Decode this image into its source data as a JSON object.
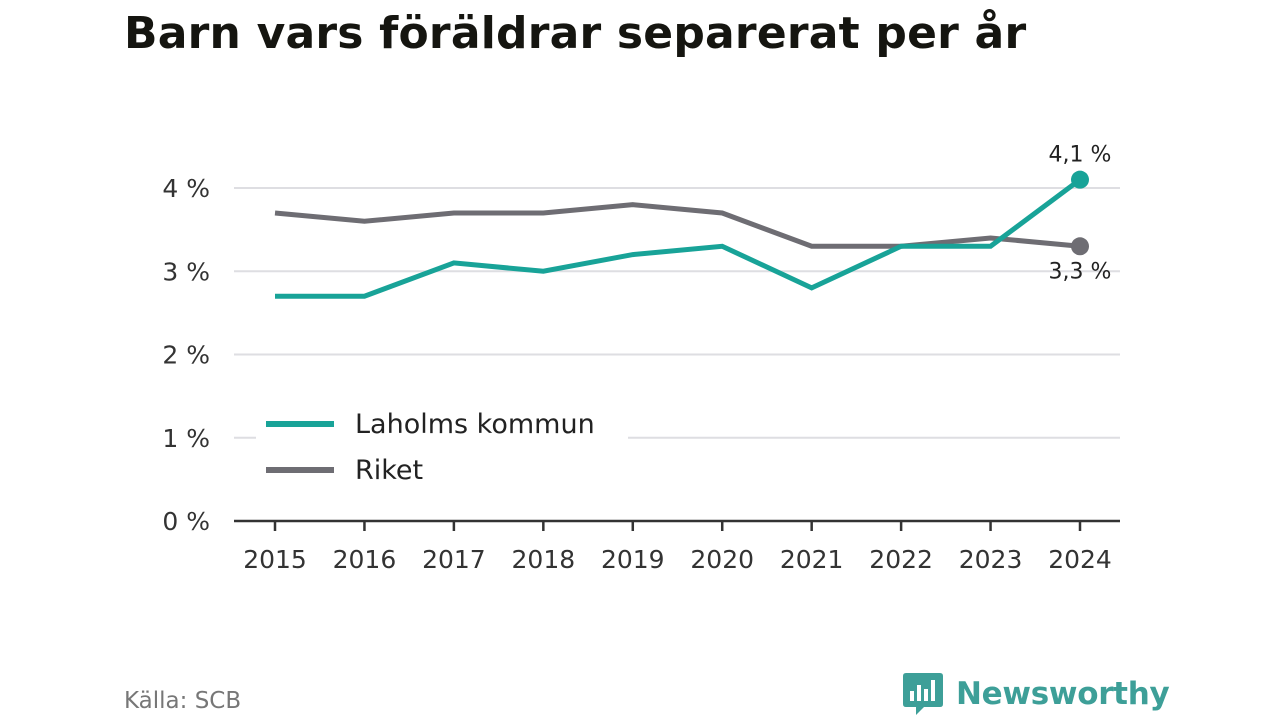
{
  "title": "Barn vars föräldrar separerat per år",
  "source": "Källa: SCB",
  "brand": {
    "name": "Newsworthy",
    "icon": "bar-chart-speech-bubble-icon",
    "color": "#3d9f98"
  },
  "chart_data": {
    "type": "line",
    "title": "Barn vars föräldrar separerat per år",
    "xlabel": "",
    "ylabel": "",
    "x": [
      "2015",
      "2016",
      "2017",
      "2018",
      "2019",
      "2020",
      "2021",
      "2022",
      "2023",
      "2024"
    ],
    "ylim": [
      0,
      4
    ],
    "y_ticks": [
      {
        "value": 0,
        "label": "0 %"
      },
      {
        "value": 1,
        "label": "1 %"
      },
      {
        "value": 2,
        "label": "2 %"
      },
      {
        "value": 3,
        "label": "3 %"
      },
      {
        "value": 4,
        "label": "4 %"
      }
    ],
    "grid": true,
    "legend_position": "bottom-left",
    "series": [
      {
        "name": "Laholms kommun",
        "color": "#18a398",
        "values": [
          2.7,
          2.7,
          3.1,
          3.0,
          3.2,
          3.3,
          2.8,
          3.3,
          3.3,
          4.1
        ],
        "end_label": "4,1 %"
      },
      {
        "name": "Riket",
        "color": "#6e6d73",
        "values": [
          3.7,
          3.6,
          3.7,
          3.7,
          3.8,
          3.7,
          3.3,
          3.3,
          3.4,
          3.3
        ],
        "end_label": "3,3 %"
      }
    ]
  }
}
